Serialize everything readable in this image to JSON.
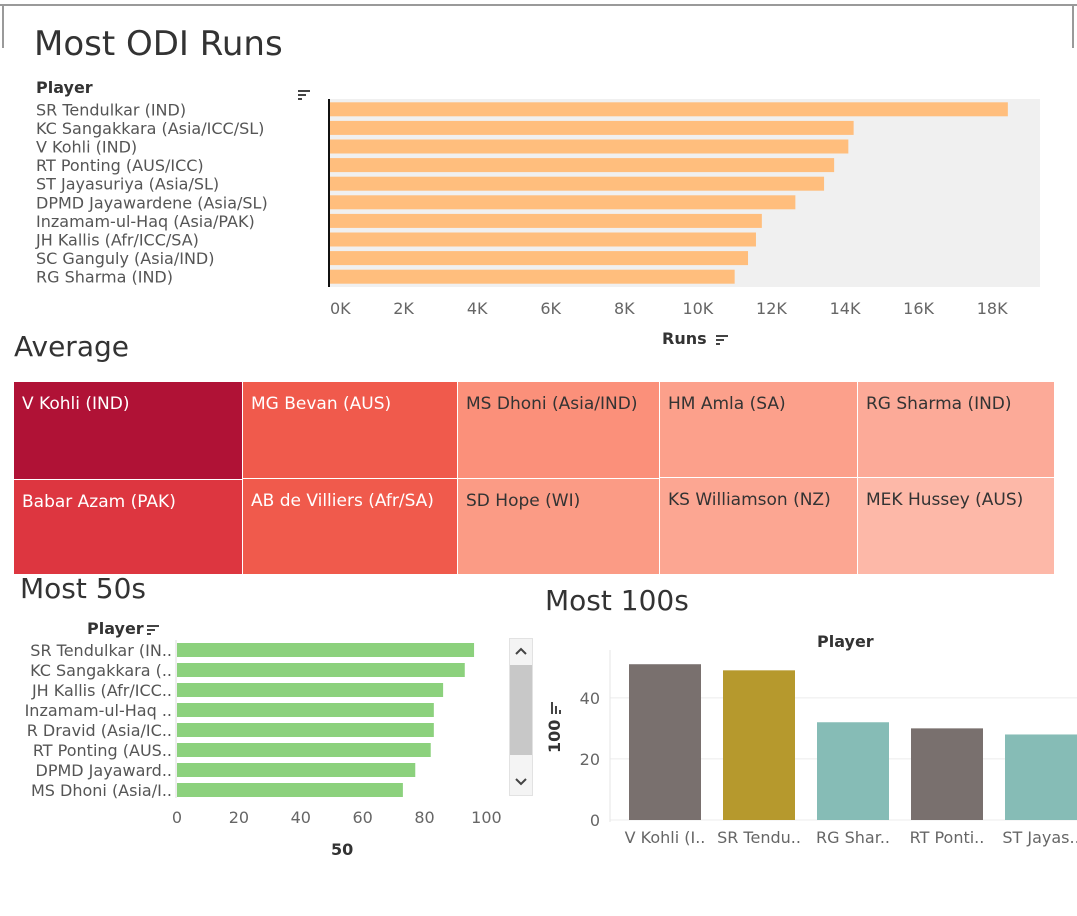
{
  "runs_chart": {
    "title": "Most ODI Runs",
    "column_header": "Player",
    "axis_label": "Runs",
    "chart_data": {
      "type": "bar",
      "orientation": "horizontal",
      "categories": [
        "SR Tendulkar (IND)",
        "KC Sangakkara (Asia/ICC/SL)",
        "V Kohli (IND)",
        "RT Ponting (AUS/ICC)",
        "ST Jayasuriya (Asia/SL)",
        "DPMD Jayawardene (Asia/SL)",
        "Inzamam-ul-Haq (Asia/PAK)",
        "JH Kallis (Afr/ICC/SA)",
        "SC Ganguly (Asia/IND)",
        "RG Sharma (IND)"
      ],
      "values": [
        18426,
        14234,
        14090,
        13704,
        13430,
        12650,
        11739,
        11579,
        11363,
        11000
      ],
      "xlabel": "Runs",
      "xlim": [
        0,
        19300
      ],
      "ticks": [
        "0K",
        "2K",
        "4K",
        "6K",
        "8K",
        "10K",
        "12K",
        "14K",
        "16K",
        "18K"
      ],
      "tick_values": [
        0,
        2000,
        4000,
        6000,
        8000,
        10000,
        12000,
        14000,
        16000,
        18000
      ],
      "color": "#ffbe7d"
    }
  },
  "average_treemap": {
    "title": "Average",
    "cells": [
      {
        "label": "V Kohli (IND)",
        "color": "#b01236"
      },
      {
        "label": "Babar Azam (PAK)",
        "color": "#dd3640"
      },
      {
        "label": "MG Bevan (AUS)",
        "color": "#f05a4c"
      },
      {
        "label": "AB de Villiers (Afr/SA)",
        "color": "#f05a4c"
      },
      {
        "label": "MS Dhoni (Asia/IND)",
        "color": "#fb907a"
      },
      {
        "label": "SD Hope (WI)",
        "color": "#fb9b85"
      },
      {
        "label": "HM Amla (SA)",
        "color": "#fca08b"
      },
      {
        "label": "KS Williamson (NZ)",
        "color": "#fca692"
      },
      {
        "label": "RG Sharma (IND)",
        "color": "#fcaa98"
      },
      {
        "label": "MEK Hussey (AUS)",
        "color": "#fdb8a8"
      }
    ]
  },
  "fifties_chart": {
    "title": "Most 50s",
    "column_header": "Player",
    "axis_label": "50",
    "scroll_up_icon": "chevron-up-icon",
    "scroll_down_icon": "chevron-down-icon",
    "chart_data": {
      "type": "bar",
      "orientation": "horizontal",
      "categories": [
        "SR Tendulkar (IN..",
        "KC Sangakkara (..",
        "JH Kallis (Afr/ICC..",
        "Inzamam-ul-Haq ..",
        "R Dravid (Asia/IC..",
        "RT Ponting (AUS..",
        "DPMD Jayaward..",
        "MS Dhoni (Asia/I.."
      ],
      "values": [
        96,
        93,
        86,
        83,
        83,
        82,
        77,
        73
      ],
      "xlabel": "50",
      "xlim": [
        0,
        106
      ],
      "ticks": [
        "0",
        "20",
        "40",
        "60",
        "80",
        "100"
      ],
      "tick_values": [
        0,
        20,
        40,
        60,
        80,
        100
      ],
      "color": "#8cd17d"
    }
  },
  "hundreds_chart": {
    "title": "Most 100s",
    "column_header": "Player",
    "axis_label": "100",
    "chart_data": {
      "type": "bar",
      "orientation": "vertical",
      "categories": [
        "V Kohli (I..",
        "SR Tendu..",
        "RG Shar..",
        "RT Ponti..",
        "ST Jayas.."
      ],
      "values": [
        51,
        49,
        32,
        30,
        28
      ],
      "ylabel": "100",
      "ylim": [
        0,
        55
      ],
      "ticks": [
        "0",
        "20",
        "40"
      ],
      "tick_values": [
        0,
        20,
        40
      ],
      "colors": [
        "#79706e",
        "#b6992d",
        "#86bcb6",
        "#79706e",
        "#86bcb6"
      ]
    }
  }
}
